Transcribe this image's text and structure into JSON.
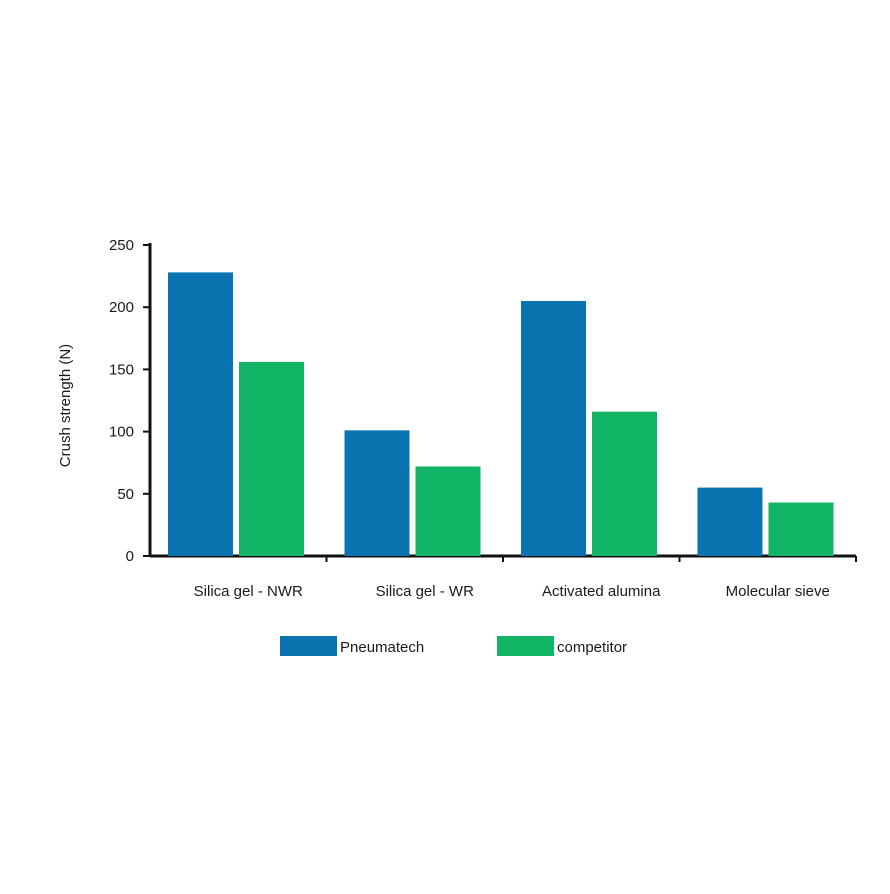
{
  "chart_data": {
    "type": "bar",
    "title": "",
    "xlabel": "",
    "ylabel": "Crush strength (N)",
    "ylim": [
      0,
      250
    ],
    "yticks": [
      0,
      50,
      100,
      150,
      200,
      250
    ],
    "grid": false,
    "legend_position": "bottom",
    "categories": [
      "Silica gel - NWR",
      "Silica gel - WR",
      "Activated alumina",
      "Molecular sieve"
    ],
    "series": [
      {
        "name": "Pneumatech",
        "color": "#0a74b0",
        "values": [
          228,
          101,
          205,
          55
        ]
      },
      {
        "name": "competitor",
        "color": "#12b565",
        "values": [
          156,
          72,
          116,
          43
        ]
      }
    ]
  }
}
